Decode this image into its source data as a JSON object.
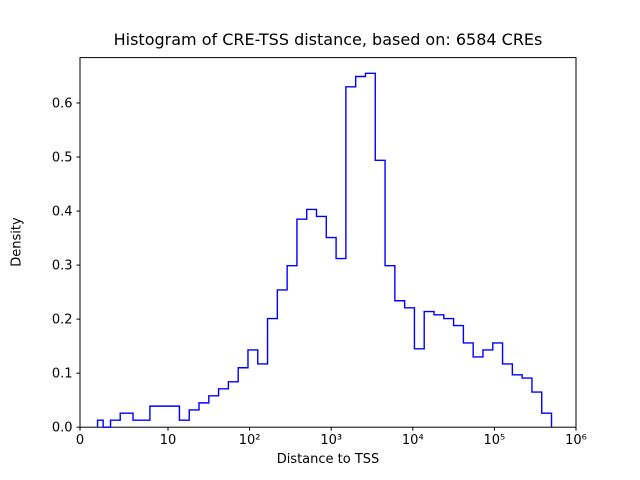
{
  "chart_data": {
    "type": "histogram-step",
    "title": "Histogram of CRE-TSS distance, based on: 6584 CREs",
    "xlabel": "Distance to TSS",
    "ylabel": "Density",
    "x_scale": "symlog",
    "line_color": "#0000ff",
    "axis_color": "#000000",
    "background": "#ffffff",
    "ylim": [
      0,
      0.684
    ],
    "x_ticks": [
      {
        "label": "0",
        "value": 0
      },
      {
        "label": "10",
        "value": 10
      },
      {
        "label": "10²",
        "value": 100
      },
      {
        "label": "10³",
        "value": 1000
      },
      {
        "label": "10⁴",
        "value": 10000
      },
      {
        "label": "10⁵",
        "value": 100000
      },
      {
        "label": "10⁶",
        "value": 1000000
      }
    ],
    "y_ticks": [
      {
        "label": "0.0",
        "value": 0.0
      },
      {
        "label": "0.1",
        "value": 0.1
      },
      {
        "label": "0.2",
        "value": 0.2
      },
      {
        "label": "0.3",
        "value": 0.3
      },
      {
        "label": "0.4",
        "value": 0.4
      },
      {
        "label": "0.5",
        "value": 0.5
      },
      {
        "label": "0.6",
        "value": 0.6
      }
    ],
    "log10_bin_start": 0.3,
    "log10_bin_width": 0.12,
    "densities": [
      0.013,
      0.0,
      0.013,
      0.026,
      0.013,
      0.039,
      0.039,
      0.013,
      0.032,
      0.045,
      0.058,
      0.071,
      0.084,
      0.11,
      0.143,
      0.117,
      0.201,
      0.254,
      0.299,
      0.385,
      0.403,
      0.39,
      0.351,
      0.312,
      0.63,
      0.649,
      0.655,
      0.494,
      0.299,
      0.234,
      0.221,
      0.145,
      0.214,
      0.208,
      0.201,
      0.188,
      0.156,
      0.13,
      0.143,
      0.156,
      0.117,
      0.097,
      0.091,
      0.065,
      0.026
    ]
  }
}
